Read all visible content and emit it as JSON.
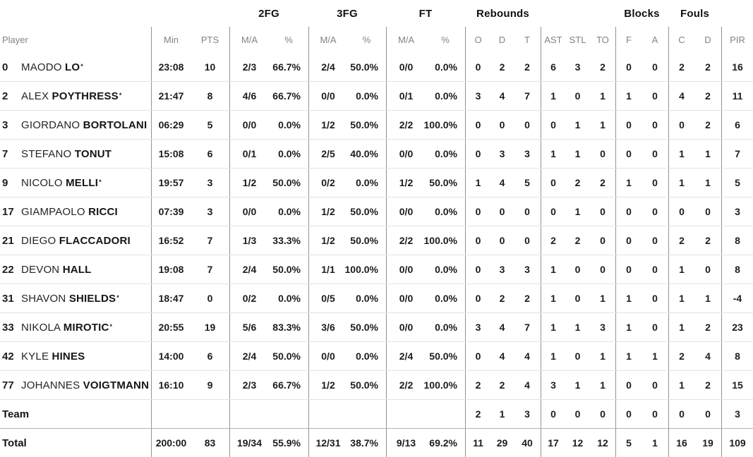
{
  "colors": {
    "text_dark": "#1c1c1e",
    "header_gray": "#7f8387",
    "column_divider": "#929292",
    "row_line": "#e3e3e3",
    "total_top_line": "#b2b2b2"
  },
  "table": {
    "starter_mark": "*",
    "groups": [
      {
        "id": "2fg",
        "label": "2FG"
      },
      {
        "id": "3fg",
        "label": "3FG"
      },
      {
        "id": "ft",
        "label": "FT"
      },
      {
        "id": "rebounds",
        "label": "Rebounds"
      },
      {
        "id": "blocks",
        "label": "Blocks"
      },
      {
        "id": "fouls",
        "label": "Fouls"
      }
    ],
    "subheader": [
      "Player",
      "Min",
      "PTS",
      "M/A",
      "%",
      "M/A",
      "%",
      "M/A",
      "%",
      "O",
      "D",
      "T",
      "AST",
      "STL",
      "TO",
      "F",
      "A",
      "C",
      "D",
      "PIR"
    ],
    "column_keys": [
      "min",
      "pts",
      "2fg-ma",
      "2fg-pct",
      "3fg-ma",
      "3fg-pct",
      "ft-ma",
      "ft-pct",
      "reb-o",
      "reb-d",
      "reb-t",
      "ast",
      "stl",
      "to",
      "blk-f",
      "blk-a",
      "foul-c",
      "foul-d",
      "pir"
    ],
    "players": [
      {
        "num": "0",
        "first": "MAODO",
        "last": "LO",
        "starter": true,
        "stats": [
          "23:08",
          "10",
          "2/3",
          "66.7%",
          "2/4",
          "50.0%",
          "0/0",
          "0.0%",
          "0",
          "2",
          "2",
          "6",
          "3",
          "2",
          "0",
          "0",
          "2",
          "2",
          "16"
        ]
      },
      {
        "num": "2",
        "first": "ALEX",
        "last": "POYTHRESS",
        "starter": true,
        "stats": [
          "21:47",
          "8",
          "4/6",
          "66.7%",
          "0/0",
          "0.0%",
          "0/1",
          "0.0%",
          "3",
          "4",
          "7",
          "1",
          "0",
          "1",
          "1",
          "0",
          "4",
          "2",
          "11"
        ]
      },
      {
        "num": "3",
        "first": "GIORDANO",
        "last": "BORTOLANI",
        "starter": false,
        "stats": [
          "06:29",
          "5",
          "0/0",
          "0.0%",
          "1/2",
          "50.0%",
          "2/2",
          "100.0%",
          "0",
          "0",
          "0",
          "0",
          "1",
          "1",
          "0",
          "0",
          "0",
          "2",
          "6"
        ]
      },
      {
        "num": "7",
        "first": "STEFANO",
        "last": "TONUT",
        "starter": false,
        "stats": [
          "15:08",
          "6",
          "0/1",
          "0.0%",
          "2/5",
          "40.0%",
          "0/0",
          "0.0%",
          "0",
          "3",
          "3",
          "1",
          "1",
          "0",
          "0",
          "0",
          "1",
          "1",
          "7"
        ]
      },
      {
        "num": "9",
        "first": "NICOLO",
        "last": "MELLI",
        "starter": true,
        "stats": [
          "19:57",
          "3",
          "1/2",
          "50.0%",
          "0/2",
          "0.0%",
          "1/2",
          "50.0%",
          "1",
          "4",
          "5",
          "0",
          "2",
          "2",
          "1",
          "0",
          "1",
          "1",
          "5"
        ]
      },
      {
        "num": "17",
        "first": "GIAMPAOLO",
        "last": "RICCI",
        "starter": false,
        "stats": [
          "07:39",
          "3",
          "0/0",
          "0.0%",
          "1/2",
          "50.0%",
          "0/0",
          "0.0%",
          "0",
          "0",
          "0",
          "0",
          "1",
          "0",
          "0",
          "0",
          "0",
          "0",
          "3"
        ]
      },
      {
        "num": "21",
        "first": "DIEGO",
        "last": "FLACCADORI",
        "starter": false,
        "stats": [
          "16:52",
          "7",
          "1/3",
          "33.3%",
          "1/2",
          "50.0%",
          "2/2",
          "100.0%",
          "0",
          "0",
          "0",
          "2",
          "2",
          "0",
          "0",
          "0",
          "2",
          "2",
          "8"
        ]
      },
      {
        "num": "22",
        "first": "DEVON",
        "last": "HALL",
        "starter": false,
        "stats": [
          "19:08",
          "7",
          "2/4",
          "50.0%",
          "1/1",
          "100.0%",
          "0/0",
          "0.0%",
          "0",
          "3",
          "3",
          "1",
          "0",
          "0",
          "0",
          "0",
          "1",
          "0",
          "8"
        ]
      },
      {
        "num": "31",
        "first": "SHAVON",
        "last": "SHIELDS",
        "starter": true,
        "stats": [
          "18:47",
          "0",
          "0/2",
          "0.0%",
          "0/5",
          "0.0%",
          "0/0",
          "0.0%",
          "0",
          "2",
          "2",
          "1",
          "0",
          "1",
          "1",
          "0",
          "1",
          "1",
          "-4"
        ]
      },
      {
        "num": "33",
        "first": "NIKOLA",
        "last": "MIROTIC",
        "starter": true,
        "stats": [
          "20:55",
          "19",
          "5/6",
          "83.3%",
          "3/6",
          "50.0%",
          "0/0",
          "0.0%",
          "3",
          "4",
          "7",
          "1",
          "1",
          "3",
          "1",
          "0",
          "1",
          "2",
          "23"
        ]
      },
      {
        "num": "42",
        "first": "KYLE",
        "last": "HINES",
        "starter": false,
        "stats": [
          "14:00",
          "6",
          "2/4",
          "50.0%",
          "0/0",
          "0.0%",
          "2/4",
          "50.0%",
          "0",
          "4",
          "4",
          "1",
          "0",
          "1",
          "1",
          "1",
          "2",
          "4",
          "8"
        ]
      },
      {
        "num": "77",
        "first": "JOHANNES",
        "last": "VOIGTMANN",
        "starter": false,
        "stats": [
          "16:10",
          "9",
          "2/3",
          "66.7%",
          "1/2",
          "50.0%",
          "2/2",
          "100.0%",
          "2",
          "2",
          "4",
          "3",
          "1",
          "1",
          "0",
          "0",
          "1",
          "2",
          "15"
        ]
      }
    ],
    "team": {
      "label": "Team",
      "stats": [
        "",
        "",
        "",
        "",
        "",
        "",
        "",
        "",
        "2",
        "1",
        "3",
        "0",
        "0",
        "0",
        "0",
        "0",
        "0",
        "0",
        "3"
      ]
    },
    "total": {
      "label": "Total",
      "stats": [
        "200:00",
        "83",
        "19/34",
        "55.9%",
        "12/31",
        "38.7%",
        "9/13",
        "69.2%",
        "11",
        "29",
        "40",
        "17",
        "12",
        "12",
        "5",
        "1",
        "16",
        "19",
        "109"
      ]
    }
  }
}
